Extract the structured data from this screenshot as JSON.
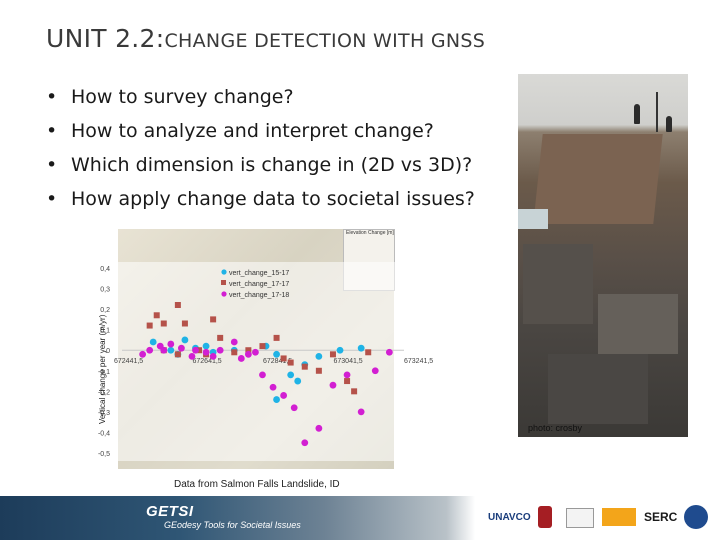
{
  "slide": {
    "title_unit": "UNIT 2.2:",
    "title_rest": "CHANGE DETECTION WITH GNSS"
  },
  "bullets": [
    "How to survey change?",
    "How to analyze and interpret change?",
    "Which dimension is change in (2D vs 3D)?",
    "How apply change data to societal issues?"
  ],
  "bullet_glyph": "•",
  "photo": {
    "credit": "photo: crosby"
  },
  "caption": "Data from Salmon Falls Landslide, ID",
  "footer": {
    "program": "GETSI",
    "tagline": "GEodesy Tools for Societal Issues",
    "logos": [
      "UNAVCO",
      "SERC"
    ]
  },
  "map_legend": {
    "title": "Elevation Change [m]"
  },
  "colors": {
    "series_15_17": "#1fb3e6",
    "series_17_17": "#b5524a",
    "series_17_18": "#d21fd2",
    "title_text": "#3a3a3a"
  },
  "chart_data": {
    "type": "scatter",
    "ylabel": "Vertical change per year (m/yr)",
    "ylim": [
      -0.5,
      0.4
    ],
    "yticks": [
      "0,4",
      "0,3",
      "0,2",
      "0,1",
      "0",
      "-0,1",
      "-0,2",
      "-0,3",
      "-0,4",
      "-0,5"
    ],
    "xlim": [
      672441.5,
      673241.5
    ],
    "xticks": [
      "672441,5",
      "672641,5",
      "672841,5",
      "673041,5",
      "673241,5"
    ],
    "legend": [
      "vert_change_15-17",
      "vert_change_17-17",
      "vert_change_17-18"
    ],
    "legend_placement": "top-center",
    "grid": false,
    "series": [
      {
        "name": "vert_change_15-17",
        "points": [
          [
            672530,
            0.04
          ],
          [
            672580,
            0.0
          ],
          [
            672620,
            0.05
          ],
          [
            672650,
            0.01
          ],
          [
            672700,
            -0.01
          ],
          [
            672760,
            0.0
          ],
          [
            672850,
            0.02
          ],
          [
            672880,
            -0.02
          ],
          [
            672920,
            -0.12
          ],
          [
            672940,
            -0.15
          ],
          [
            672880,
            -0.24
          ],
          [
            672960,
            -0.07
          ],
          [
            673000,
            -0.03
          ],
          [
            673060,
            0.0
          ],
          [
            673120,
            0.01
          ],
          [
            672600,
            -0.02
          ],
          [
            672680,
            0.02
          ]
        ]
      },
      {
        "name": "vert_change_17-17",
        "points": [
          [
            672520,
            0.12
          ],
          [
            672540,
            0.17
          ],
          [
            672560,
            0.13
          ],
          [
            672600,
            0.22
          ],
          [
            672620,
            0.13
          ],
          [
            672660,
            0.0
          ],
          [
            672700,
            0.15
          ],
          [
            672720,
            0.06
          ],
          [
            672760,
            -0.01
          ],
          [
            672800,
            0.0
          ],
          [
            672840,
            0.02
          ],
          [
            672880,
            0.06
          ],
          [
            672900,
            -0.04
          ],
          [
            672920,
            -0.06
          ],
          [
            672960,
            -0.08
          ],
          [
            673000,
            -0.1
          ],
          [
            673040,
            -0.02
          ],
          [
            673080,
            -0.15
          ],
          [
            673100,
            -0.2
          ],
          [
            672560,
            0.0
          ],
          [
            672600,
            -0.02
          ],
          [
            672680,
            -0.02
          ],
          [
            673140,
            -0.01
          ]
        ]
      },
      {
        "name": "vert_change_17-18",
        "points": [
          [
            672500,
            -0.02
          ],
          [
            672520,
            0.0
          ],
          [
            672550,
            0.02
          ],
          [
            672580,
            0.03
          ],
          [
            672610,
            0.01
          ],
          [
            672640,
            -0.03
          ],
          [
            672680,
            -0.01
          ],
          [
            672720,
            0.0
          ],
          [
            672760,
            0.04
          ],
          [
            672800,
            -0.02
          ],
          [
            672840,
            -0.12
          ],
          [
            672870,
            -0.18
          ],
          [
            672900,
            -0.22
          ],
          [
            672930,
            -0.28
          ],
          [
            672960,
            -0.45
          ],
          [
            673000,
            -0.38
          ],
          [
            673040,
            -0.17
          ],
          [
            673080,
            -0.12
          ],
          [
            673120,
            -0.3
          ],
          [
            673160,
            -0.1
          ],
          [
            672560,
            0.0
          ],
          [
            672650,
            0.0
          ],
          [
            672700,
            -0.03
          ],
          [
            672780,
            -0.04
          ],
          [
            672820,
            -0.01
          ],
          [
            673200,
            -0.01
          ]
        ]
      }
    ]
  }
}
